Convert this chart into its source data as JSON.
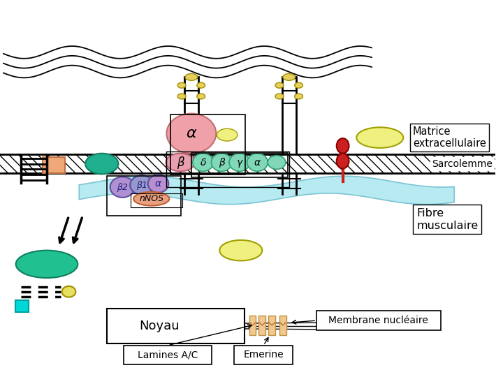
{
  "bg_color": "#ffffff",
  "labels": {
    "matrice": "Matrice\nextracellulaire",
    "sarcolemme": "Sarcolemme",
    "fibre": "Fibre\nmusculaire",
    "noyau": "Noyau",
    "lamines": "Lamines A/C",
    "emerine": "Emerine",
    "membrane": "Membrane nucléaire",
    "nnos": "nNOS",
    "alpha": "α",
    "beta": "β",
    "delta": "δ",
    "beta2": "β2",
    "beta1": "β1",
    "gamma": "γ"
  },
  "colors": {
    "pink_alpha": "#f0a0a8",
    "pink_beta": "#e8a0b0",
    "green_sg": "#80d8b8",
    "teal": "#20b090",
    "salmon": "#f0a878",
    "purple_b2": "#b090d0",
    "purple_b1": "#9898cc",
    "purple_a": "#b890d0",
    "nnos_color": "#e8a080",
    "red_rec": "#cc2020",
    "yellow": "#f0f080",
    "yellow_dark": "#e8e060",
    "teal_big": "#20c090",
    "cyan": "#00d8d8",
    "dystro_blue": "#b0e8f0",
    "stalk_yellow": "#e8d060"
  }
}
